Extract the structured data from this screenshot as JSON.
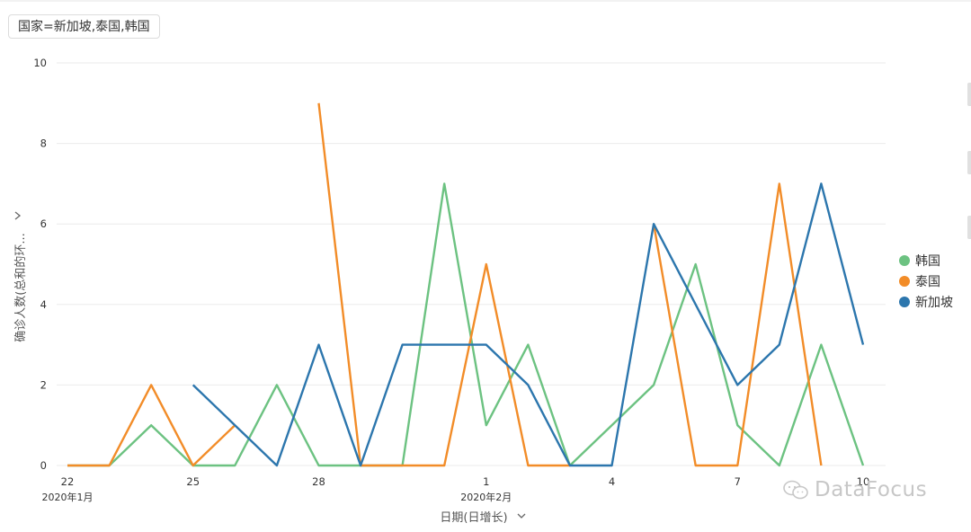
{
  "filter": {
    "label": "国家=新加坡,泰国,韩国"
  },
  "watermark": {
    "text": "DataFocus",
    "icon": "wechat-icon"
  },
  "chart_data": {
    "type": "line",
    "ylabel": "确诊人数(总和的环...",
    "xlabel": "日期(日增长)",
    "ylim": [
      0,
      10
    ],
    "yticks": [
      0,
      2,
      4,
      6,
      8,
      10
    ],
    "grid": true,
    "legend_position": "right",
    "x": [
      "1月22",
      "1月23",
      "1月24",
      "1月25",
      "1月26",
      "1月27",
      "1月28",
      "1月29",
      "1月30",
      "1月31",
      "2月1",
      "2月2",
      "2月3",
      "2月4",
      "2月5",
      "2月6",
      "2月7",
      "2月8",
      "2月9",
      "2月10"
    ],
    "x_tick_labels": [
      {
        "index": 0,
        "label": "22",
        "sub": "2020年1月"
      },
      {
        "index": 3,
        "label": "25",
        "sub": ""
      },
      {
        "index": 6,
        "label": "28",
        "sub": ""
      },
      {
        "index": 10,
        "label": "1",
        "sub": "2020年2月"
      },
      {
        "index": 13,
        "label": "4",
        "sub": ""
      },
      {
        "index": 16,
        "label": "7",
        "sub": ""
      },
      {
        "index": 19,
        "label": "10",
        "sub": ""
      }
    ],
    "series": [
      {
        "name": "韩国",
        "color": "#6cc281",
        "values": [
          0,
          0,
          1,
          0,
          0,
          2,
          0,
          0,
          0,
          7,
          1,
          3,
          0,
          1,
          2,
          5,
          1,
          0,
          3,
          0
        ]
      },
      {
        "name": "泰国",
        "color": "#f28c28",
        "values": [
          0,
          0,
          2,
          0,
          1,
          null,
          9,
          0,
          0,
          0,
          5,
          0,
          0,
          null,
          6,
          0,
          0,
          7,
          0,
          null
        ]
      },
      {
        "name": "新加坡",
        "color": "#2c76ad",
        "values": [
          null,
          null,
          null,
          2,
          1,
          0,
          3,
          0,
          3,
          3,
          3,
          2,
          0,
          0,
          6,
          4,
          2,
          3,
          7,
          3
        ]
      }
    ]
  }
}
